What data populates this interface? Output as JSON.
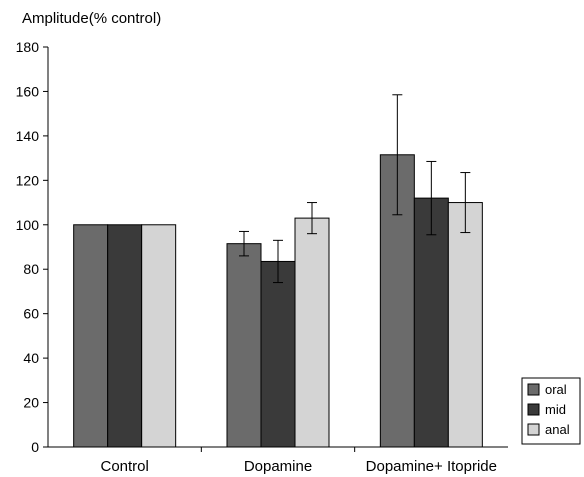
{
  "chart_data": {
    "type": "bar",
    "title": "",
    "xlabel": "",
    "ylabel": "Amplitude(% control)",
    "ylim": [
      0,
      180
    ],
    "yticks": [
      0,
      20,
      40,
      60,
      80,
      100,
      120,
      140,
      160,
      180
    ],
    "categories": [
      "Control",
      "Dopamine",
      "Dopamine+ Itopride"
    ],
    "series": [
      {
        "name": "oral",
        "color": "#6b6b6b",
        "values": [
          100,
          91.5,
          131.5
        ],
        "error": [
          0,
          5.5,
          27
        ]
      },
      {
        "name": "mid",
        "color": "#3a3a3a",
        "values": [
          100,
          83.5,
          112
        ],
        "error": [
          0,
          9.5,
          16.5
        ]
      },
      {
        "name": "anal",
        "color": "#d4d4d4",
        "values": [
          100,
          103,
          110
        ],
        "error": [
          0,
          7,
          13.5
        ]
      }
    ],
    "legend_position": "bottom-right",
    "grid": false
  }
}
